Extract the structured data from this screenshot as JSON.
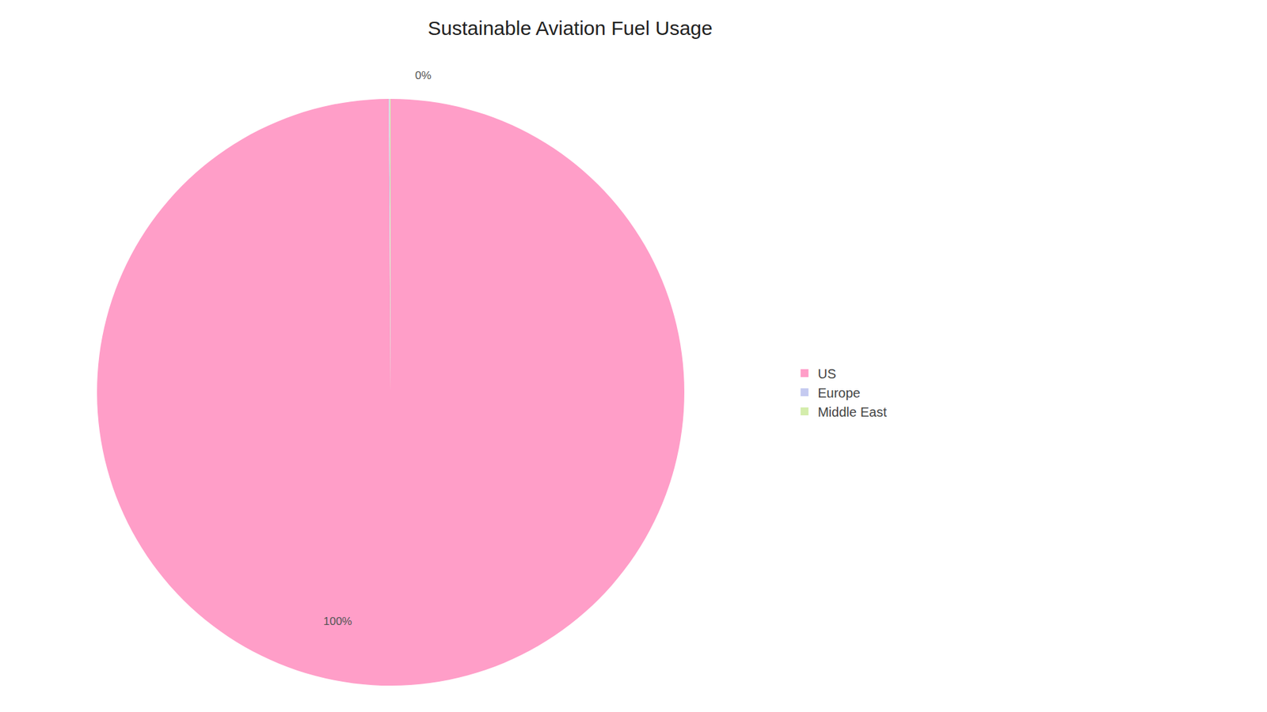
{
  "chart_data": {
    "type": "pie",
    "title": "Sustainable Aviation Fuel Usage",
    "categories": [
      "US",
      "Europe",
      "Middle East"
    ],
    "values": [
      99.9,
      0.05,
      0.05
    ],
    "colors": [
      "#FF9EC8",
      "#C5CAF0",
      "#D4EDAC"
    ],
    "annotations": [
      "0%",
      "100%"
    ],
    "legend": "right"
  }
}
